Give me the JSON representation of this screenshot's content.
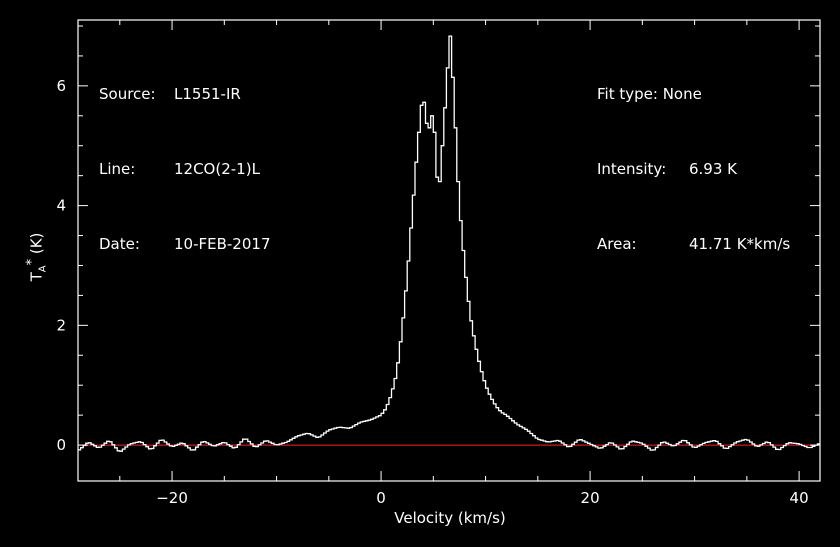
{
  "info": {
    "source_key": "Source:",
    "source_val": "L1551-IR",
    "line_key": "Line:",
    "line_val": "12CO(2-1)L",
    "date_key": "Date:",
    "date_val": "10-FEB-2017",
    "fit_key": "Fit type:",
    "fit_val": "None",
    "intensity_key": "Intensity:",
    "intensity_val": "6.93 K",
    "area_key": "Area:",
    "area_val": "41.71 K*km/s"
  },
  "colors": {
    "background": "#000000",
    "axes": "#ffffff",
    "spectrum": "#ffffff",
    "baseline": "#ff2020"
  },
  "chart_data": {
    "type": "line",
    "style": "histogram-step",
    "title": "",
    "xlabel": "Velocity (km/s)",
    "ylabel": "T_A* (K)",
    "xlim": [
      -29,
      42
    ],
    "ylim": [
      -0.6,
      7.1
    ],
    "x_ticks": [
      -20,
      0,
      20,
      40
    ],
    "y_ticks": [
      0,
      2,
      4,
      6
    ],
    "grid": false,
    "baseline": 0,
    "series": [
      {
        "values_x": [
          -29.0,
          -28.0,
          -27.0,
          -26.0,
          -25.0,
          -24.0,
          -23.0,
          -22.0,
          -21.0,
          -20.0,
          -19.0,
          -18.0,
          -17.0,
          -16.0,
          -15.0,
          -14.0,
          -13.0,
          -12.0,
          -11.0,
          -10.0,
          -9.0,
          -8.0,
          -7.0,
          -6.0,
          -5.0,
          -4.0,
          -3.0,
          -2.0,
          -1.0,
          0.0,
          0.5,
          1.0,
          1.5,
          2.0,
          2.5,
          3.0,
          3.5,
          4.0,
          4.5,
          5.0,
          5.5,
          6.0,
          6.3,
          6.6,
          7.0,
          7.3,
          7.6,
          8.0,
          8.5,
          9.0,
          9.5,
          10.0,
          10.5,
          11.0,
          11.5,
          12.0,
          13.0,
          14.0,
          15.0,
          16.0,
          17.0,
          18.0,
          19.0,
          20.0,
          21.0,
          22.0,
          23.0,
          24.0,
          25.0,
          26.0,
          27.0,
          28.0,
          29.0,
          30.0,
          31.0,
          32.0,
          33.0,
          34.0,
          35.0,
          36.0,
          37.0,
          38.0,
          39.0,
          40.0,
          41.0,
          42.0
        ],
        "values_y": [
          -0.1,
          0.05,
          -0.05,
          0.08,
          -0.12,
          0.02,
          0.06,
          -0.08,
          0.1,
          -0.03,
          0.04,
          -0.1,
          0.07,
          -0.02,
          0.05,
          -0.06,
          0.12,
          -0.04,
          0.08,
          0.0,
          0.05,
          0.15,
          0.2,
          0.12,
          0.25,
          0.3,
          0.28,
          0.38,
          0.42,
          0.5,
          0.62,
          0.85,
          1.2,
          1.9,
          2.8,
          3.9,
          5.0,
          5.9,
          5.2,
          5.6,
          4.1,
          5.3,
          6.1,
          6.9,
          5.8,
          4.6,
          3.8,
          3.0,
          2.2,
          1.7,
          1.3,
          1.0,
          0.8,
          0.65,
          0.55,
          0.5,
          0.35,
          0.25,
          0.1,
          0.05,
          0.08,
          -0.04,
          0.1,
          0.02,
          -0.06,
          0.05,
          -0.08,
          0.07,
          0.03,
          -0.1,
          0.06,
          -0.02,
          0.09,
          -0.05,
          0.04,
          0.08,
          -0.07,
          0.05,
          0.1,
          -0.03,
          0.06,
          -0.09,
          0.04,
          0.02,
          -0.05,
          0.03
        ]
      }
    ]
  }
}
